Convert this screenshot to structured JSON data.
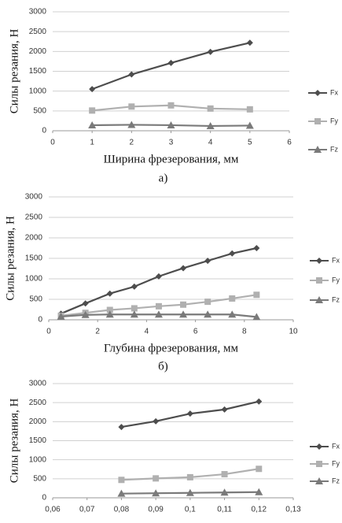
{
  "chart_data": [
    {
      "type": "line",
      "xlabel": "Ширина фрезерования, мм",
      "ylabel": "Силы резания, Н",
      "caption": "а)",
      "x": [
        1,
        2,
        3,
        4,
        5
      ],
      "series": [
        {
          "name": "Fx",
          "color": "#4d4d4d",
          "marker": "diamond",
          "values": [
            1050,
            1420,
            1710,
            1990,
            2220
          ]
        },
        {
          "name": "Fy",
          "color": "#b0b0b0",
          "marker": "square",
          "values": [
            510,
            610,
            640,
            560,
            540
          ]
        },
        {
          "name": "Fz",
          "color": "#7a7a7a",
          "marker": "triangle",
          "values": [
            140,
            150,
            140,
            120,
            130
          ]
        }
      ],
      "xlim": [
        0,
        6
      ],
      "xticks": [
        0,
        1,
        2,
        3,
        4,
        5,
        6
      ],
      "ylim": [
        0,
        3000
      ],
      "yticks": [
        0,
        500,
        1000,
        1500,
        2000,
        2500,
        3000
      ],
      "grid": true,
      "legend": "right"
    },
    {
      "type": "line",
      "xlabel": "Глубина фрезерования, мм",
      "ylabel": "Силы резания, Н",
      "caption": "б)",
      "x": [
        0.5,
        1.5,
        2.5,
        3.5,
        4.5,
        5.5,
        6.5,
        7.5,
        8.5
      ],
      "series": [
        {
          "name": "Fx",
          "color": "#4d4d4d",
          "marker": "diamond",
          "values": [
            150,
            400,
            640,
            810,
            1060,
            1260,
            1440,
            1620,
            1750
          ]
        },
        {
          "name": "Fy",
          "color": "#b0b0b0",
          "marker": "square",
          "values": [
            100,
            170,
            240,
            280,
            330,
            370,
            440,
            520,
            610
          ]
        },
        {
          "name": "Fz",
          "color": "#7a7a7a",
          "marker": "triangle",
          "values": [
            80,
            120,
            130,
            130,
            130,
            130,
            130,
            130,
            70
          ]
        }
      ],
      "xlim": [
        0,
        10
      ],
      "xticks": [
        0,
        2,
        4,
        6,
        8,
        10
      ],
      "ylim": [
        0,
        3000
      ],
      "yticks": [
        0,
        500,
        1000,
        1500,
        2000,
        2500,
        3000
      ],
      "grid": true,
      "legend": "right"
    },
    {
      "type": "line",
      "ylabel": "Силы резания, Н",
      "x": [
        0.08,
        0.09,
        0.1,
        0.11,
        0.12
      ],
      "series": [
        {
          "name": "Fx",
          "color": "#4d4d4d",
          "marker": "diamond",
          "values": [
            1860,
            2010,
            2210,
            2320,
            2530
          ]
        },
        {
          "name": "Fy",
          "color": "#b0b0b0",
          "marker": "square",
          "values": [
            470,
            510,
            540,
            620,
            760
          ]
        },
        {
          "name": "Fz",
          "color": "#7a7a7a",
          "marker": "triangle",
          "values": [
            110,
            120,
            130,
            140,
            150
          ]
        }
      ],
      "xlim": [
        0.06,
        0.13
      ],
      "xticks": [
        {
          "value": 0.06,
          "label": "0,06"
        },
        {
          "value": 0.07,
          "label": "0,07"
        },
        {
          "value": 0.08,
          "label": "0,08"
        },
        {
          "value": 0.09,
          "label": "0,09"
        },
        {
          "value": 0.1,
          "label": "0,1"
        },
        {
          "value": 0.11,
          "label": "0,11"
        },
        {
          "value": 0.12,
          "label": "0,12"
        },
        {
          "value": 0.13,
          "label": "0,13"
        }
      ],
      "ylim": [
        0,
        3000
      ],
      "yticks": [
        0,
        500,
        1000,
        1500,
        2000,
        2500,
        3000
      ],
      "grid": true,
      "legend": "right"
    }
  ]
}
